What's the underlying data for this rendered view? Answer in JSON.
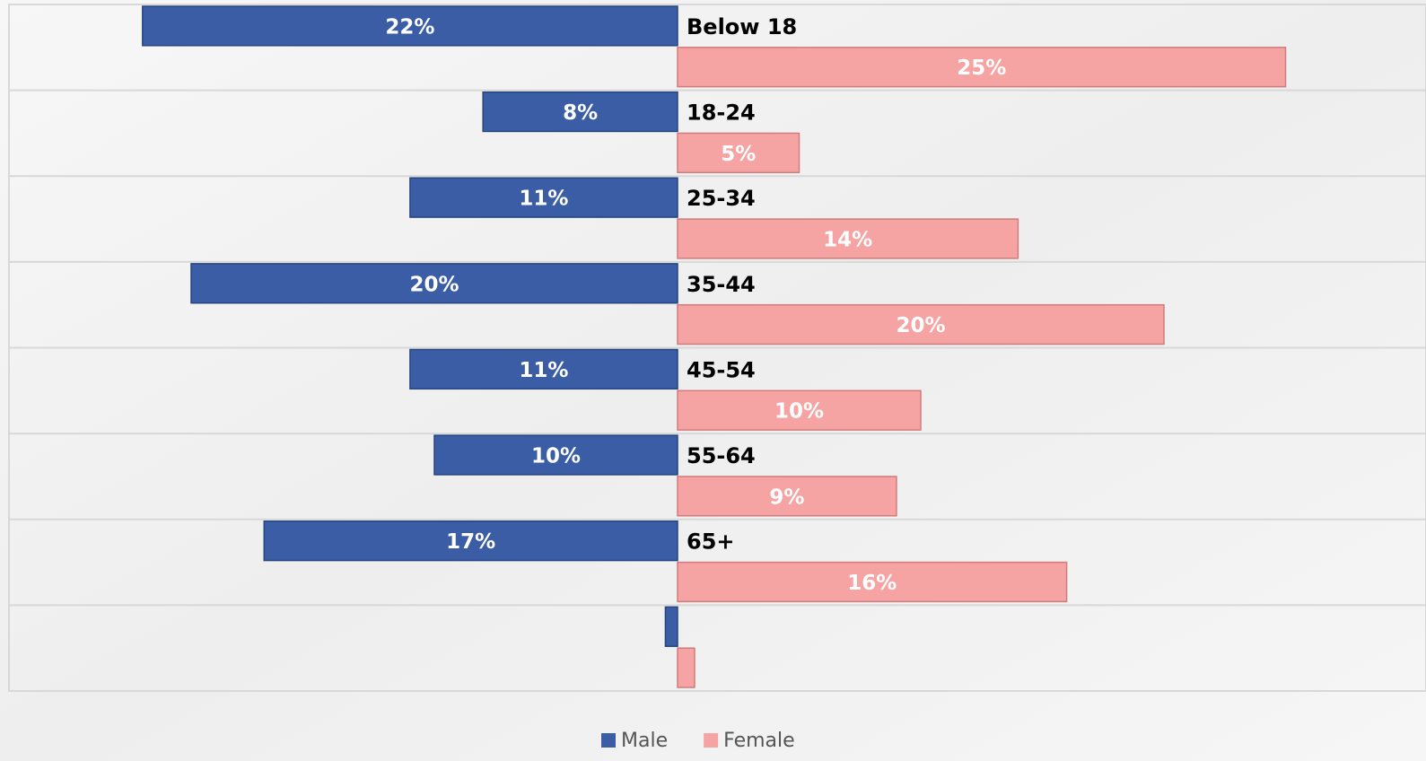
{
  "chart_data": {
    "type": "butterfly-bar",
    "categories": [
      "Below 18",
      "18-24",
      "25-34",
      "35-44",
      "45-54",
      "55-64",
      "65+",
      null
    ],
    "series": [
      {
        "name": "Male",
        "color": "#3a5da6",
        "values": [
          22,
          8,
          11,
          20,
          11,
          10,
          17,
          0.5
        ],
        "value_labels": [
          "22%",
          "8%",
          "11%",
          "20%",
          "11%",
          "10%",
          "17%",
          null
        ]
      },
      {
        "name": "Female",
        "color": "#f5a3a3",
        "values": [
          25,
          5,
          14,
          20,
          10,
          9,
          16,
          0.7
        ],
        "value_labels": [
          "25%",
          "5%",
          "14%",
          "20%",
          "10%",
          "9%",
          "16%",
          null
        ]
      }
    ],
    "legend": "bottom"
  }
}
